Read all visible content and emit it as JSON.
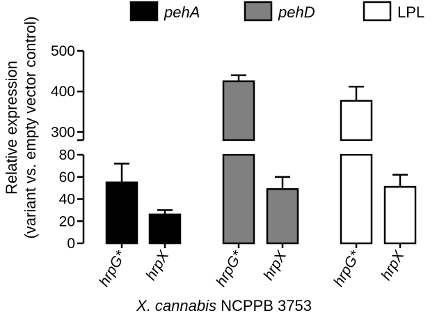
{
  "chart_data": {
    "type": "bar",
    "legend": [
      {
        "label": "pehA",
        "italic": true,
        "fill": "#000000"
      },
      {
        "label": "pehD",
        "italic": true,
        "fill": "#808080"
      },
      {
        "label": "LPL",
        "italic": false,
        "fill": "#ffffff"
      }
    ],
    "legend_position": "top",
    "ylabel_line1": "Relative expression",
    "ylabel_line2": "(variant vs. empty vector control)",
    "xlabel_italic": "X. cannabis",
    "xlabel_rest": " NCPPB 3753",
    "y_axis_break": true,
    "ylim_lower": [
      0,
      80
    ],
    "ylim_upper": [
      280,
      500
    ],
    "yticks_lower": [
      "0",
      "20",
      "40",
      "60",
      "80"
    ],
    "yticks_upper": [
      "300",
      "400",
      "500"
    ],
    "groups": [
      {
        "series": "pehA",
        "bars": [
          {
            "category": "hrpG*",
            "value": 55,
            "error": 17
          },
          {
            "category": "hrpX",
            "value": 26,
            "error": 4
          }
        ]
      },
      {
        "series": "pehD",
        "bars": [
          {
            "category": "hrpG*",
            "value": 425,
            "error": 15
          },
          {
            "category": "hrpX",
            "value": 49,
            "error": 11
          }
        ]
      },
      {
        "series": "LPL",
        "bars": [
          {
            "category": "hrpG*",
            "value": 377,
            "error": 35
          },
          {
            "category": "hrpX",
            "value": 51,
            "error": 11
          }
        ]
      }
    ]
  }
}
